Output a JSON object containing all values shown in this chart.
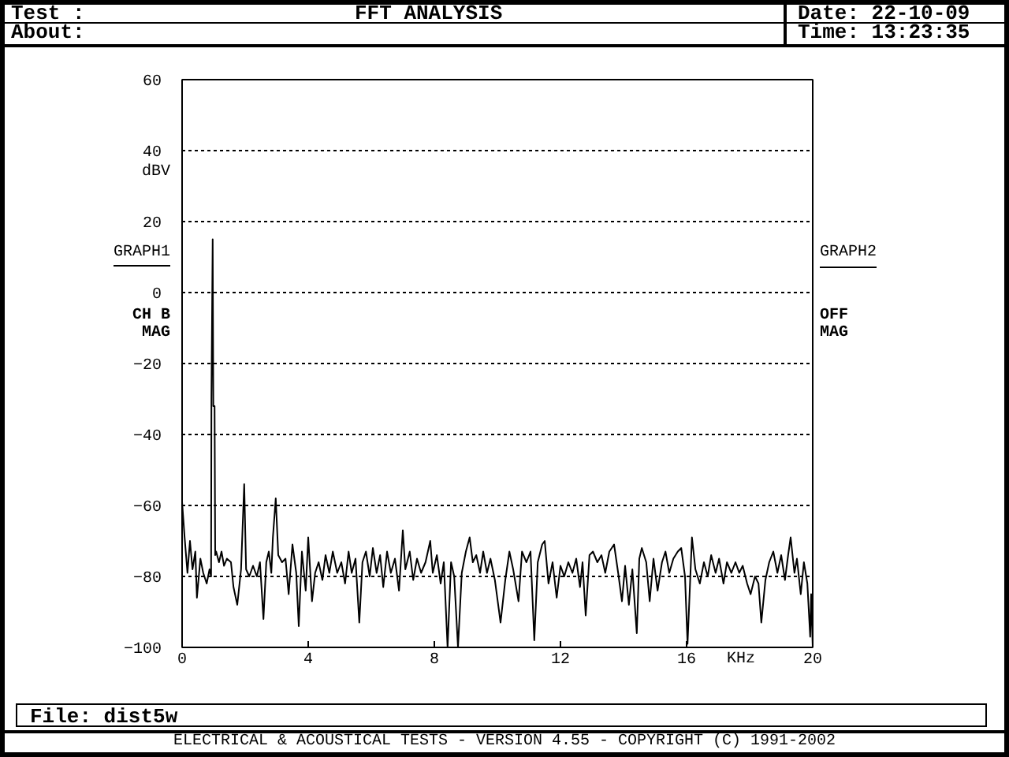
{
  "chart_data": {
    "type": "line",
    "title": "FFT ANALYSIS",
    "xlabel": "KHz",
    "ylabel": "dBV",
    "annotations": [
      "Test :",
      "About:",
      "Date: 22-10-09",
      "Time: 13:23:35",
      "GRAPH1",
      "CH B",
      "MAG",
      "GRAPH2",
      "OFF",
      "MAG",
      "File: dist5w",
      "ELECTRICAL & ACOUSTICAL TESTS - VERSION 4.55 - COPYRIGHT (C) 1991-2002"
    ],
    "x": [
      0,
      0.08,
      0.17,
      0.25,
      0.33,
      0.42,
      0.47,
      0.58,
      0.67,
      0.78,
      0.87,
      0.92,
      0.93,
      0.97,
      0.99,
      1.03,
      1.05,
      1.08,
      1.17,
      1.25,
      1.33,
      1.42,
      1.55,
      1.63,
      1.75,
      1.87,
      1.92,
      1.97,
      2.03,
      2.13,
      2.25,
      2.37,
      2.47,
      2.58,
      2.67,
      2.75,
      2.83,
      2.88,
      2.97,
      3.05,
      3.17,
      3.28,
      3.38,
      3.5,
      3.62,
      3.7,
      3.8,
      3.92,
      4.0,
      4.12,
      4.22,
      4.33,
      4.45,
      4.55,
      4.67,
      4.78,
      4.92,
      5.05,
      5.17,
      5.28,
      5.38,
      5.5,
      5.62,
      5.72,
      5.83,
      5.95,
      6.05,
      6.17,
      6.28,
      6.38,
      6.5,
      6.62,
      6.75,
      6.88,
      7.0,
      7.08,
      7.22,
      7.33,
      7.45,
      7.58,
      7.72,
      7.87,
      7.95,
      8.08,
      8.2,
      8.3,
      8.42,
      8.53,
      8.63,
      8.75,
      8.87,
      9.0,
      9.12,
      9.22,
      9.33,
      9.45,
      9.55,
      9.67,
      9.78,
      9.92,
      10.1,
      10.25,
      10.38,
      10.5,
      10.67,
      10.78,
      10.92,
      11.05,
      11.17,
      11.28,
      11.42,
      11.5,
      11.62,
      11.75,
      11.88,
      12.0,
      12.12,
      12.25,
      12.38,
      12.5,
      12.62,
      12.7,
      12.8,
      12.92,
      13.03,
      13.17,
      13.3,
      13.42,
      13.55,
      13.7,
      13.83,
      13.95,
      14.05,
      14.17,
      14.28,
      14.42,
      14.5,
      14.58,
      14.72,
      14.83,
      14.95,
      15.08,
      15.22,
      15.33,
      15.45,
      15.58,
      15.72,
      15.83,
      15.95,
      16.03,
      16.17,
      16.28,
      16.42,
      16.55,
      16.67,
      16.78,
      16.92,
      17.03,
      17.17,
      17.28,
      17.42,
      17.55,
      17.67,
      17.78,
      17.92,
      18.03,
      18.17,
      18.28,
      18.37,
      18.5,
      18.62,
      18.75,
      18.88,
      19.0,
      19.12,
      19.22,
      19.3,
      19.42,
      19.5,
      19.62,
      19.72,
      19.83,
      19.92,
      19.95,
      20
    ],
    "series": [
      {
        "color": "#000000",
        "values": [
          -59,
          -69,
          -79,
          -70,
          -78,
          -73,
          -86,
          -75,
          -79,
          -82,
          -78,
          -80,
          -30,
          15,
          -32,
          -32,
          -74,
          -73,
          -76,
          -73,
          -77,
          -75,
          -76,
          -83,
          -88,
          -78,
          -66,
          -54,
          -78,
          -80,
          -77,
          -80,
          -76,
          -92,
          -76,
          -73,
          -79,
          -69,
          -58,
          -74,
          -76,
          -75,
          -85,
          -71,
          -79,
          -94,
          -73,
          -84,
          -69,
          -87,
          -79,
          -76,
          -81,
          -74,
          -79,
          -73,
          -79,
          -76,
          -82,
          -73,
          -79,
          -75,
          -93,
          -76,
          -73,
          -80,
          -72,
          -79,
          -74,
          -83,
          -73,
          -79,
          -75,
          -84,
          -67,
          -78,
          -73,
          -81,
          -75,
          -79,
          -76,
          -70,
          -79,
          -74,
          -82,
          -76,
          -100,
          -76,
          -80,
          -100,
          -79,
          -73,
          -69,
          -76,
          -74,
          -79,
          -73,
          -79,
          -75,
          -81,
          -93,
          -81,
          -73,
          -78,
          -87,
          -73,
          -76,
          -73,
          -98,
          -76,
          -71,
          -70,
          -82,
          -76,
          -86,
          -77,
          -80,
          -76,
          -79,
          -75,
          -83,
          -76,
          -91,
          -74,
          -73,
          -76,
          -74,
          -79,
          -73,
          -71,
          -79,
          -87,
          -77,
          -88,
          -78,
          -96,
          -75,
          -72,
          -76,
          -87,
          -75,
          -84,
          -76,
          -73,
          -79,
          -75,
          -73,
          -72,
          -80,
          -99,
          -69,
          -78,
          -82,
          -76,
          -80,
          -74,
          -79,
          -75,
          -82,
          -76,
          -79,
          -76,
          -79,
          -77,
          -82,
          -85,
          -80,
          -82,
          -93,
          -81,
          -76,
          -73,
          -79,
          -74,
          -81,
          -74,
          -69,
          -79,
          -75,
          -85,
          -76,
          -82,
          -97,
          -85,
          -100
        ]
      }
    ],
    "xlim": [
      0,
      20
    ],
    "ylim": [
      -100,
      60
    ],
    "xticks": [
      0,
      4,
      8,
      12,
      16,
      20
    ],
    "yticks": [
      -100,
      -80,
      -60,
      -40,
      -20,
      0,
      20,
      40,
      60
    ],
    "grid": "y"
  }
}
